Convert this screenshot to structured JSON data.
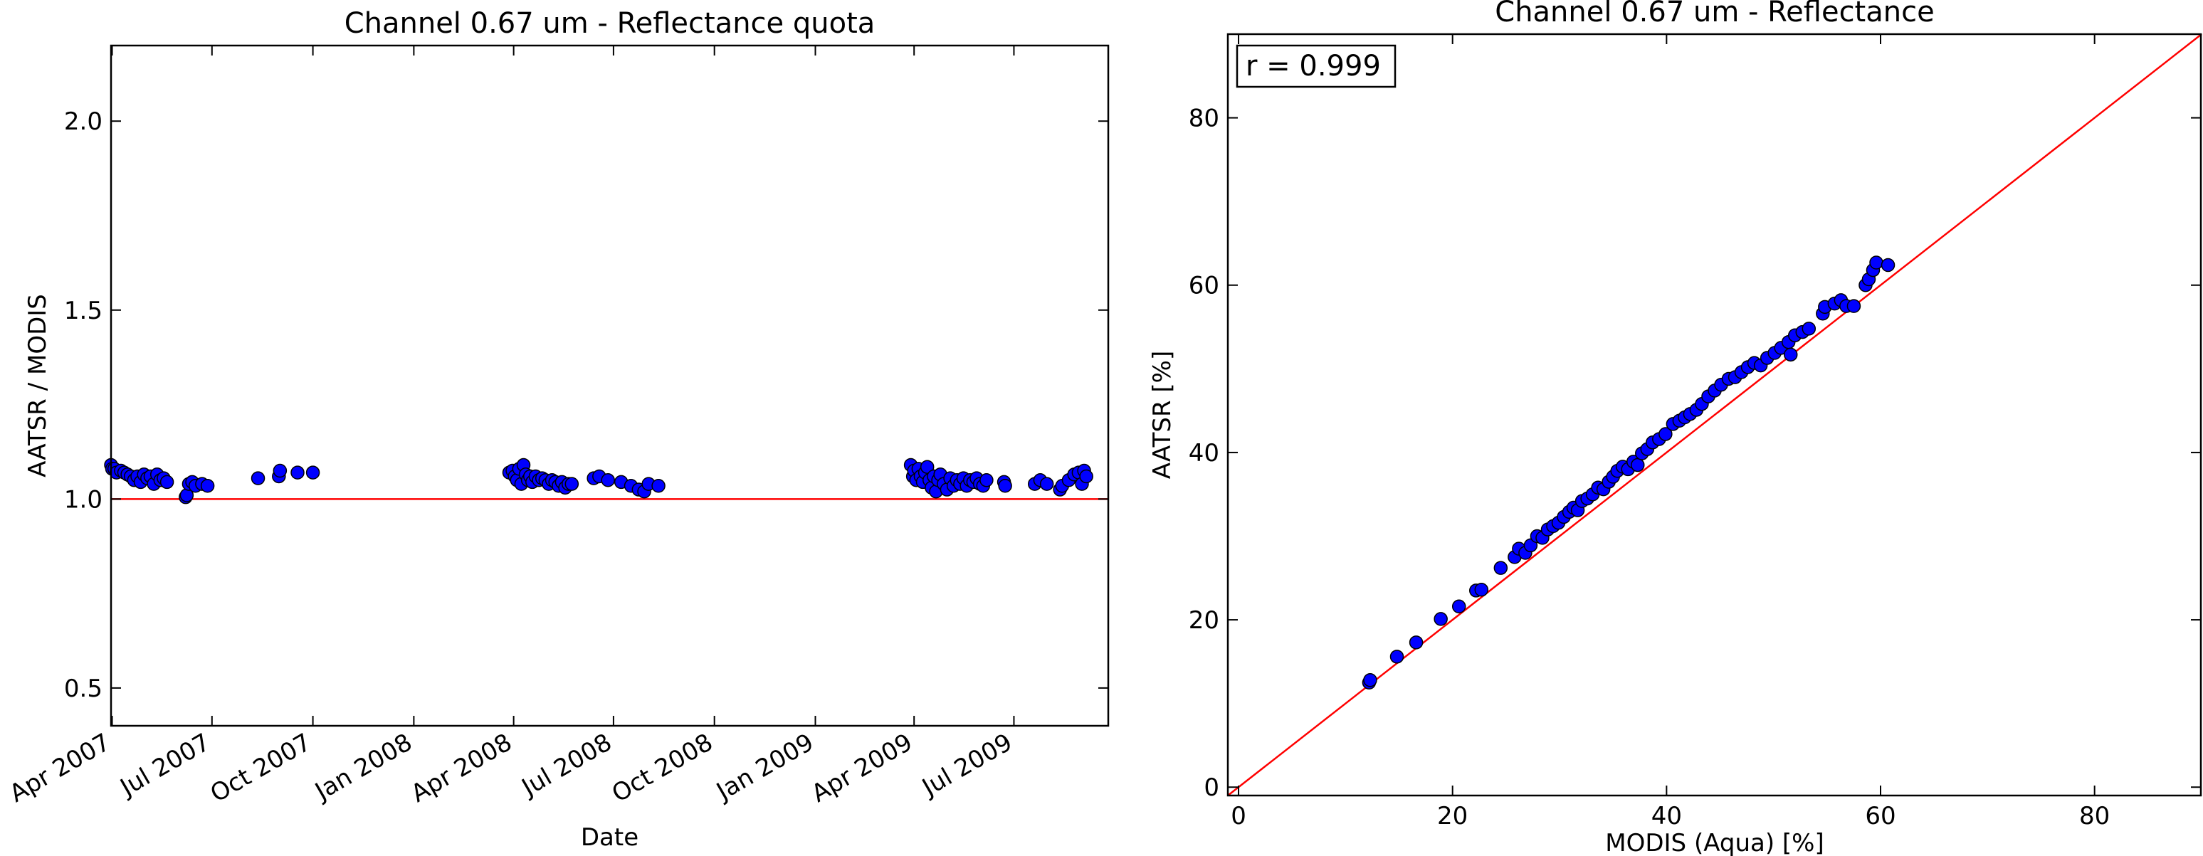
{
  "chart_data": [
    {
      "type": "scatter",
      "title": "Channel 0.67 um - Reflectance quota",
      "xlabel": "Date",
      "ylabel": "AATSR / MODIS",
      "x_axis_type": "date",
      "xlim": [
        "2007-03-31",
        "2009-09-25"
      ],
      "ylim": [
        0.4,
        2.2
      ],
      "yticks": [
        0.5,
        1.0,
        1.5,
        2.0
      ],
      "ytick_labels": [
        "0.5",
        "1.0",
        "1.5",
        "2.0"
      ],
      "xticks": [
        "2007-04-01",
        "2007-07-01",
        "2007-10-01",
        "2008-01-01",
        "2008-04-01",
        "2008-07-01",
        "2008-10-01",
        "2009-01-01",
        "2009-04-01",
        "2009-07-01"
      ],
      "xtick_labels": [
        "Apr 2007",
        "Jul 2007",
        "Oct 2007",
        "Jan 2008",
        "Apr 2008",
        "Jul 2008",
        "Oct 2008",
        "Jan 2009",
        "Apr 2009",
        "Jul 2009"
      ],
      "reference_line": {
        "y": 1.0,
        "color": "#ff0000"
      },
      "marker_color": "#0000ff",
      "grid": false,
      "points": [
        {
          "x": "2007-03-31",
          "y": 1.09
        },
        {
          "x": "2007-04-01",
          "y": 1.08
        },
        {
          "x": "2007-04-03",
          "y": 1.08
        },
        {
          "x": "2007-04-05",
          "y": 1.07
        },
        {
          "x": "2007-04-09",
          "y": 1.075
        },
        {
          "x": "2007-04-12",
          "y": 1.07
        },
        {
          "x": "2007-04-15",
          "y": 1.065
        },
        {
          "x": "2007-04-18",
          "y": 1.06
        },
        {
          "x": "2007-04-21",
          "y": 1.05
        },
        {
          "x": "2007-04-24",
          "y": 1.06
        },
        {
          "x": "2007-04-27",
          "y": 1.045
        },
        {
          "x": "2007-04-30",
          "y": 1.065
        },
        {
          "x": "2007-05-03",
          "y": 1.055
        },
        {
          "x": "2007-05-06",
          "y": 1.06
        },
        {
          "x": "2007-05-09",
          "y": 1.04
        },
        {
          "x": "2007-05-12",
          "y": 1.065
        },
        {
          "x": "2007-05-15",
          "y": 1.05
        },
        {
          "x": "2007-05-18",
          "y": 1.055
        },
        {
          "x": "2007-05-21",
          "y": 1.045
        },
        {
          "x": "2007-06-07",
          "y": 1.005
        },
        {
          "x": "2007-06-08",
          "y": 1.01
        },
        {
          "x": "2007-06-10",
          "y": 1.04
        },
        {
          "x": "2007-06-13",
          "y": 1.045
        },
        {
          "x": "2007-06-16",
          "y": 1.035
        },
        {
          "x": "2007-06-22",
          "y": 1.04
        },
        {
          "x": "2007-06-27",
          "y": 1.035
        },
        {
          "x": "2007-08-12",
          "y": 1.055
        },
        {
          "x": "2007-08-31",
          "y": 1.06
        },
        {
          "x": "2007-09-01",
          "y": 1.075
        },
        {
          "x": "2007-09-17",
          "y": 1.07
        },
        {
          "x": "2007-10-01",
          "y": 1.07
        },
        {
          "x": "2008-03-28",
          "y": 1.07
        },
        {
          "x": "2008-03-31",
          "y": 1.075
        },
        {
          "x": "2008-04-02",
          "y": 1.06
        },
        {
          "x": "2008-04-04",
          "y": 1.05
        },
        {
          "x": "2008-04-06",
          "y": 1.08
        },
        {
          "x": "2008-04-08",
          "y": 1.04
        },
        {
          "x": "2008-04-10",
          "y": 1.09
        },
        {
          "x": "2008-04-12",
          "y": 1.065
        },
        {
          "x": "2008-04-14",
          "y": 1.05
        },
        {
          "x": "2008-04-16",
          "y": 1.06
        },
        {
          "x": "2008-04-18",
          "y": 1.045
        },
        {
          "x": "2008-04-21",
          "y": 1.06
        },
        {
          "x": "2008-04-24",
          "y": 1.05
        },
        {
          "x": "2008-04-27",
          "y": 1.055
        },
        {
          "x": "2008-04-30",
          "y": 1.05
        },
        {
          "x": "2008-05-03",
          "y": 1.04
        },
        {
          "x": "2008-05-06",
          "y": 1.05
        },
        {
          "x": "2008-05-09",
          "y": 1.045
        },
        {
          "x": "2008-05-12",
          "y": 1.035
        },
        {
          "x": "2008-05-15",
          "y": 1.045
        },
        {
          "x": "2008-05-18",
          "y": 1.03
        },
        {
          "x": "2008-05-21",
          "y": 1.04
        },
        {
          "x": "2008-05-24",
          "y": 1.04
        },
        {
          "x": "2008-06-13",
          "y": 1.055
        },
        {
          "x": "2008-06-18",
          "y": 1.06
        },
        {
          "x": "2008-06-26",
          "y": 1.05
        },
        {
          "x": "2008-07-08",
          "y": 1.045
        },
        {
          "x": "2008-07-17",
          "y": 1.035
        },
        {
          "x": "2008-07-24",
          "y": 1.025
        },
        {
          "x": "2008-07-29",
          "y": 1.02
        },
        {
          "x": "2008-08-02",
          "y": 1.04
        },
        {
          "x": "2008-08-11",
          "y": 1.035
        },
        {
          "x": "2009-03-29",
          "y": 1.09
        },
        {
          "x": "2009-03-31",
          "y": 1.06
        },
        {
          "x": "2009-04-01",
          "y": 1.075
        },
        {
          "x": "2009-04-03",
          "y": 1.05
        },
        {
          "x": "2009-04-05",
          "y": 1.08
        },
        {
          "x": "2009-04-07",
          "y": 1.06
        },
        {
          "x": "2009-04-09",
          "y": 1.045
        },
        {
          "x": "2009-04-11",
          "y": 1.07
        },
        {
          "x": "2009-04-13",
          "y": 1.085
        },
        {
          "x": "2009-04-15",
          "y": 1.05
        },
        {
          "x": "2009-04-17",
          "y": 1.03
        },
        {
          "x": "2009-04-19",
          "y": 1.06
        },
        {
          "x": "2009-04-21",
          "y": 1.02
        },
        {
          "x": "2009-04-23",
          "y": 1.05
        },
        {
          "x": "2009-04-25",
          "y": 1.065
        },
        {
          "x": "2009-04-28",
          "y": 1.04
        },
        {
          "x": "2009-05-01",
          "y": 1.025
        },
        {
          "x": "2009-05-04",
          "y": 1.055
        },
        {
          "x": "2009-05-07",
          "y": 1.035
        },
        {
          "x": "2009-05-10",
          "y": 1.05
        },
        {
          "x": "2009-05-13",
          "y": 1.04
        },
        {
          "x": "2009-05-16",
          "y": 1.055
        },
        {
          "x": "2009-05-19",
          "y": 1.035
        },
        {
          "x": "2009-05-22",
          "y": 1.05
        },
        {
          "x": "2009-05-25",
          "y": 1.045
        },
        {
          "x": "2009-05-28",
          "y": 1.055
        },
        {
          "x": "2009-05-31",
          "y": 1.04
        },
        {
          "x": "2009-06-03",
          "y": 1.035
        },
        {
          "x": "2009-06-06",
          "y": 1.05
        },
        {
          "x": "2009-06-22",
          "y": 1.045
        },
        {
          "x": "2009-06-23",
          "y": 1.035
        },
        {
          "x": "2009-07-20",
          "y": 1.04
        },
        {
          "x": "2009-07-25",
          "y": 1.05
        },
        {
          "x": "2009-07-31",
          "y": 1.04
        },
        {
          "x": "2009-08-12",
          "y": 1.025
        },
        {
          "x": "2009-08-14",
          "y": 1.035
        },
        {
          "x": "2009-08-20",
          "y": 1.05
        },
        {
          "x": "2009-08-25",
          "y": 1.065
        },
        {
          "x": "2009-08-29",
          "y": 1.07
        },
        {
          "x": "2009-09-01",
          "y": 1.04
        },
        {
          "x": "2009-09-03",
          "y": 1.075
        },
        {
          "x": "2009-09-05",
          "y": 1.06
        }
      ]
    },
    {
      "type": "scatter",
      "title": "Channel 0.67 um - Reflectance",
      "xlabel": "MODIS (Aqua) [%]",
      "ylabel": "AATSR [%]",
      "xlim": [
        -1,
        90
      ],
      "ylim": [
        -1,
        90
      ],
      "xticks": [
        0,
        20,
        40,
        60,
        80
      ],
      "yticks": [
        0,
        20,
        40,
        60,
        80
      ],
      "reference_line": {
        "slope": 1,
        "intercept": 0,
        "color": "#ff0000"
      },
      "annotation": "r = 0.999",
      "marker_color": "#0000ff",
      "grid": false,
      "points": [
        {
          "x": 12.2,
          "y": 12.5
        },
        {
          "x": 12.3,
          "y": 12.8
        },
        {
          "x": 14.8,
          "y": 15.6
        },
        {
          "x": 16.6,
          "y": 17.3
        },
        {
          "x": 18.9,
          "y": 20.1
        },
        {
          "x": 20.6,
          "y": 21.6
        },
        {
          "x": 22.2,
          "y": 23.5
        },
        {
          "x": 22.7,
          "y": 23.6
        },
        {
          "x": 24.5,
          "y": 26.2
        },
        {
          "x": 25.8,
          "y": 27.5
        },
        {
          "x": 26.2,
          "y": 28.5
        },
        {
          "x": 26.8,
          "y": 28.0
        },
        {
          "x": 27.3,
          "y": 28.9
        },
        {
          "x": 27.9,
          "y": 30.0
        },
        {
          "x": 28.4,
          "y": 29.8
        },
        {
          "x": 28.9,
          "y": 30.8
        },
        {
          "x": 29.4,
          "y": 31.2
        },
        {
          "x": 29.9,
          "y": 31.6
        },
        {
          "x": 30.4,
          "y": 32.3
        },
        {
          "x": 30.9,
          "y": 32.9
        },
        {
          "x": 31.3,
          "y": 33.4
        },
        {
          "x": 31.7,
          "y": 33.1
        },
        {
          "x": 32.1,
          "y": 34.2
        },
        {
          "x": 32.6,
          "y": 34.5
        },
        {
          "x": 33.1,
          "y": 35.0
        },
        {
          "x": 33.6,
          "y": 35.8
        },
        {
          "x": 34.1,
          "y": 35.6
        },
        {
          "x": 34.6,
          "y": 36.5
        },
        {
          "x": 35.0,
          "y": 37.1
        },
        {
          "x": 35.4,
          "y": 37.8
        },
        {
          "x": 35.9,
          "y": 38.3
        },
        {
          "x": 36.4,
          "y": 38.0
        },
        {
          "x": 36.9,
          "y": 38.9
        },
        {
          "x": 37.3,
          "y": 38.5
        },
        {
          "x": 37.7,
          "y": 39.9
        },
        {
          "x": 38.2,
          "y": 40.4
        },
        {
          "x": 38.7,
          "y": 41.2
        },
        {
          "x": 39.3,
          "y": 41.6
        },
        {
          "x": 39.9,
          "y": 42.2
        },
        {
          "x": 40.6,
          "y": 43.4
        },
        {
          "x": 41.2,
          "y": 43.8
        },
        {
          "x": 41.7,
          "y": 44.2
        },
        {
          "x": 42.2,
          "y": 44.6
        },
        {
          "x": 42.8,
          "y": 45.1
        },
        {
          "x": 43.3,
          "y": 45.8
        },
        {
          "x": 43.9,
          "y": 46.7
        },
        {
          "x": 44.5,
          "y": 47.4
        },
        {
          "x": 45.1,
          "y": 48.1
        },
        {
          "x": 45.8,
          "y": 48.8
        },
        {
          "x": 46.4,
          "y": 49.0
        },
        {
          "x": 47.0,
          "y": 49.6
        },
        {
          "x": 47.6,
          "y": 50.2
        },
        {
          "x": 48.2,
          "y": 50.7
        },
        {
          "x": 48.8,
          "y": 50.4
        },
        {
          "x": 49.4,
          "y": 51.3
        },
        {
          "x": 50.1,
          "y": 51.9
        },
        {
          "x": 50.7,
          "y": 52.5
        },
        {
          "x": 51.4,
          "y": 53.2
        },
        {
          "x": 51.6,
          "y": 51.7
        },
        {
          "x": 52.0,
          "y": 54.0
        },
        {
          "x": 52.7,
          "y": 54.4
        },
        {
          "x": 53.3,
          "y": 54.8
        },
        {
          "x": 54.6,
          "y": 56.6
        },
        {
          "x": 54.8,
          "y": 57.4
        },
        {
          "x": 55.7,
          "y": 57.8
        },
        {
          "x": 56.3,
          "y": 58.2
        },
        {
          "x": 56.8,
          "y": 57.5
        },
        {
          "x": 57.5,
          "y": 57.5
        },
        {
          "x": 58.6,
          "y": 60.0
        },
        {
          "x": 58.9,
          "y": 60.7
        },
        {
          "x": 59.3,
          "y": 61.8
        },
        {
          "x": 59.6,
          "y": 62.7
        },
        {
          "x": 60.7,
          "y": 62.4
        }
      ]
    }
  ]
}
